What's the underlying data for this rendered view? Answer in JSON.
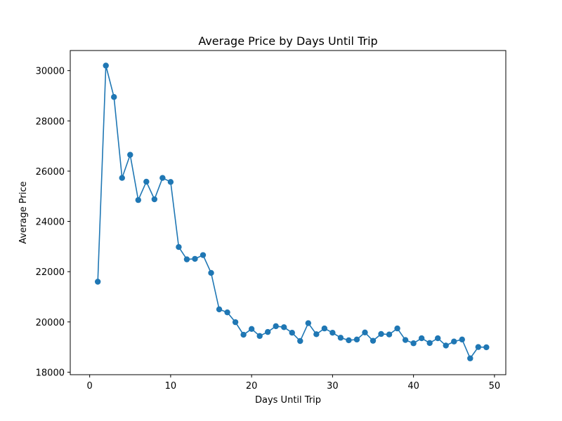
{
  "chart_data": {
    "type": "line",
    "title": "Average Price by Days Until Trip",
    "xlabel": "Days Until Trip",
    "ylabel": "Average Price",
    "xlim": [
      -2.4,
      51.4
    ],
    "ylim": [
      17900,
      30800
    ],
    "xticks": [
      0,
      10,
      20,
      30,
      40,
      50
    ],
    "yticks": [
      18000,
      20000,
      22000,
      24000,
      26000,
      28000,
      30000
    ],
    "grid": false,
    "legend": "none",
    "marker": "circle",
    "color": "#1f77b4",
    "series": [
      {
        "x": [
          1,
          2,
          3,
          4,
          5,
          6,
          7,
          8,
          9,
          10,
          11,
          12,
          13,
          14,
          15,
          16,
          17,
          18,
          19,
          20,
          21,
          22,
          23,
          24,
          25,
          26,
          27,
          28,
          29,
          30,
          31,
          32,
          33,
          34,
          35,
          36,
          37,
          38,
          39,
          40,
          41,
          42,
          43,
          44,
          45,
          46,
          47,
          48,
          49
        ],
        "values": [
          21600,
          30200,
          28950,
          25730,
          26650,
          24850,
          25580,
          24880,
          25730,
          25570,
          22980,
          22490,
          22510,
          22660,
          21950,
          20500,
          20380,
          19990,
          19490,
          19720,
          19440,
          19600,
          19830,
          19790,
          19570,
          19240,
          19950,
          19510,
          19740,
          19570,
          19370,
          19270,
          19300,
          19580,
          19250,
          19520,
          19500,
          19740,
          19280,
          19150,
          19350,
          19160,
          19350,
          19060,
          19220,
          19300,
          18550,
          19000,
          18990
        ]
      }
    ]
  }
}
